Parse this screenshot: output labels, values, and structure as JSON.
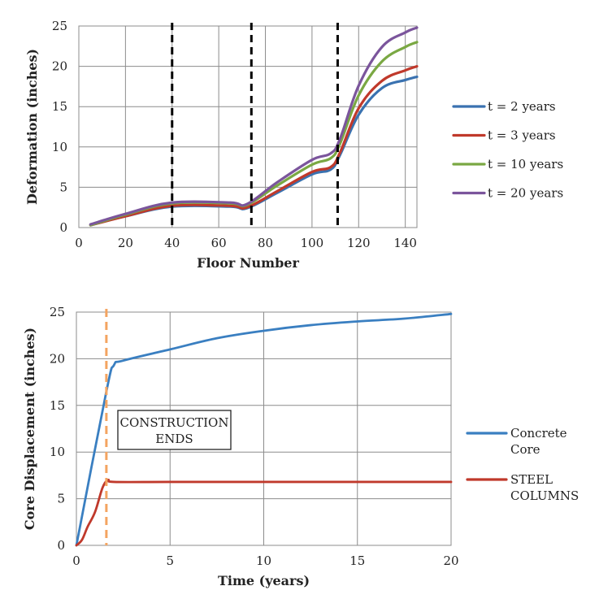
{
  "chart_data": [
    {
      "type": "line",
      "xlabel": "Floor Number",
      "ylabel": "Deformation (inches)",
      "xlim": [
        0,
        145
      ],
      "ylim": [
        0,
        25
      ],
      "xticks": [
        0,
        20,
        40,
        60,
        80,
        100,
        120,
        140
      ],
      "yticks": [
        0,
        5,
        10,
        15,
        20,
        25
      ],
      "grid": true,
      "legend": "right",
      "vlines": {
        "x": [
          40,
          74,
          111
        ],
        "style": "dashed",
        "color": "#000000"
      },
      "series": [
        {
          "name": "t = 2 years",
          "color": "#3a72b0",
          "x": [
            5,
            20,
            40,
            65,
            72,
            85,
            100,
            108,
            112,
            120,
            130,
            140,
            145
          ],
          "y": [
            0.3,
            1.4,
            2.6,
            2.6,
            2.4,
            4.3,
            6.6,
            7.2,
            9.0,
            14.0,
            17.3,
            18.3,
            18.7
          ]
        },
        {
          "name": "t = 3 years",
          "color": "#c0392b",
          "x": [
            5,
            20,
            40,
            65,
            72,
            85,
            100,
            108,
            112,
            120,
            130,
            140,
            145
          ],
          "y": [
            0.3,
            1.4,
            2.7,
            2.7,
            2.5,
            4.5,
            6.9,
            7.5,
            9.3,
            14.8,
            18.2,
            19.5,
            20.0
          ]
        },
        {
          "name": "t = 10 years",
          "color": "#7aa843",
          "x": [
            5,
            20,
            40,
            65,
            72,
            85,
            100,
            108,
            112,
            120,
            130,
            140,
            145
          ],
          "y": [
            0.3,
            1.6,
            3.0,
            3.0,
            2.8,
            5.2,
            7.8,
            8.6,
            10.4,
            16.4,
            20.6,
            22.4,
            23.0
          ]
        },
        {
          "name": "t = 20 years",
          "color": "#7b559c",
          "x": [
            5,
            20,
            40,
            65,
            72,
            85,
            100,
            108,
            112,
            120,
            130,
            140,
            145
          ],
          "y": [
            0.4,
            1.7,
            3.1,
            3.1,
            2.9,
            5.6,
            8.4,
            9.2,
            11.0,
            17.6,
            22.4,
            24.2,
            24.8
          ]
        }
      ]
    },
    {
      "type": "line",
      "xlabel": "Time (years)",
      "ylabel": "Core Displacement (inches)",
      "xlim": [
        0,
        20
      ],
      "ylim": [
        0,
        25
      ],
      "xticks": [
        0,
        5,
        10,
        15,
        20
      ],
      "yticks": [
        0,
        5,
        10,
        15,
        20,
        25
      ],
      "grid": true,
      "legend": "right",
      "vlines": {
        "x": [
          1.6
        ],
        "style": "dashed",
        "color": "#f4a460"
      },
      "annotation": {
        "lines": [
          "CONSTRUCTION",
          "ENDS"
        ]
      },
      "series": [
        {
          "name": "Concrete Core",
          "color": "#3a7fc1",
          "x": [
            0,
            1.6,
            2.0,
            2.5,
            5,
            7.5,
            10,
            12.5,
            15,
            17.5,
            20
          ],
          "y": [
            0,
            16.5,
            19.3,
            19.8,
            21.0,
            22.2,
            23.0,
            23.6,
            24.0,
            24.3,
            24.8
          ]
        },
        {
          "name": "STEEL COLUMNS",
          "color": "#c0392b",
          "x": [
            0,
            0.3,
            0.6,
            1.0,
            1.4,
            1.7,
            2.0,
            5,
            10,
            15,
            20
          ],
          "y": [
            0,
            0.6,
            2.0,
            3.6,
            6.2,
            7.0,
            6.8,
            6.8,
            6.8,
            6.8,
            6.8
          ]
        }
      ]
    }
  ]
}
